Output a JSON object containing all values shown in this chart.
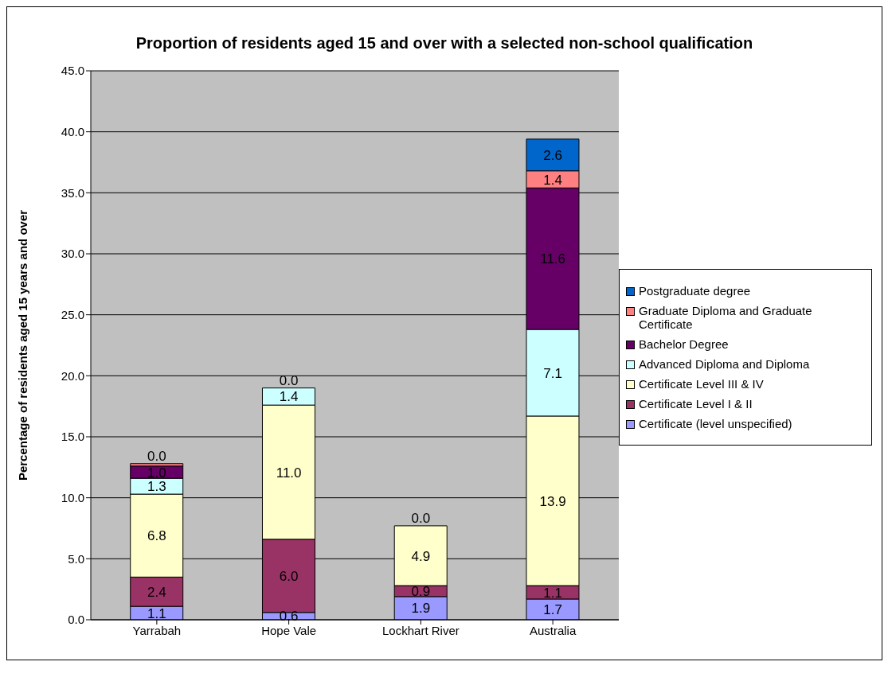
{
  "chart_data": {
    "type": "bar",
    "title": "Proportion of residents aged 15 and over with a selected non-school qualification",
    "ylabel": "Percentage of residents aged 15 years and over",
    "categories": [
      "Yarrabah",
      "Hope Vale",
      "Lockhart River",
      "Australia"
    ],
    "stacked": true,
    "grid": "y",
    "legend": "right",
    "ylim": [
      0,
      45
    ],
    "yticks": [
      {
        "value": 0,
        "label": "0.0"
      },
      {
        "value": 5,
        "label": "5.0"
      },
      {
        "value": 10,
        "label": "10.0"
      },
      {
        "value": 15,
        "label": "15.0"
      },
      {
        "value": 20,
        "label": "20.0"
      },
      {
        "value": 25,
        "label": "25.0"
      },
      {
        "value": 30,
        "label": "30.0"
      },
      {
        "value": 35,
        "label": "35.0"
      },
      {
        "value": 40,
        "label": "40.0"
      },
      {
        "value": 45,
        "label": "45.0"
      }
    ],
    "series": [
      {
        "name": "Certificate (level unspecified)",
        "color": "#9999ff",
        "values": [
          1.1,
          0.6,
          1.9,
          1.7
        ],
        "value_labels": [
          "1.1",
          "0.6",
          "1.9",
          "1.7"
        ]
      },
      {
        "name": "Certificate Level I & II",
        "color": "#993366",
        "values": [
          2.4,
          6.0,
          0.9,
          1.1
        ],
        "value_labels": [
          "2.4",
          "6.0",
          "0.9",
          "1.1"
        ]
      },
      {
        "name": "Certificate Level III & IV",
        "color": "#ffffcc",
        "values": [
          6.8,
          11.0,
          4.9,
          13.9
        ],
        "value_labels": [
          "6.8",
          "11.0",
          "4.9",
          "13.9"
        ]
      },
      {
        "name": "Advanced Diploma and Diploma",
        "color": "#ccffff",
        "values": [
          1.3,
          1.4,
          0.0,
          7.1
        ],
        "value_labels": [
          "1.3",
          "1.4",
          null,
          "7.1"
        ]
      },
      {
        "name": "Bachelor Degree",
        "color": "#660066",
        "values": [
          1.0,
          0.0,
          0.0,
          11.6
        ],
        "value_labels": [
          "1.0",
          null,
          null,
          "11.6"
        ]
      },
      {
        "name": "Graduate Diploma and Graduate Certificate",
        "color": "#ff8080",
        "values": [
          0.2,
          0.0,
          0.0,
          1.4
        ],
        "value_labels": [
          null,
          null,
          null,
          "1.4"
        ]
      },
      {
        "name": "Postgraduate degree",
        "color": "#0066cc",
        "values": [
          0.0,
          0.0,
          0.0,
          2.6
        ],
        "value_labels": [
          "0.0",
          "0.0",
          "0.0",
          "2.6"
        ]
      }
    ]
  }
}
